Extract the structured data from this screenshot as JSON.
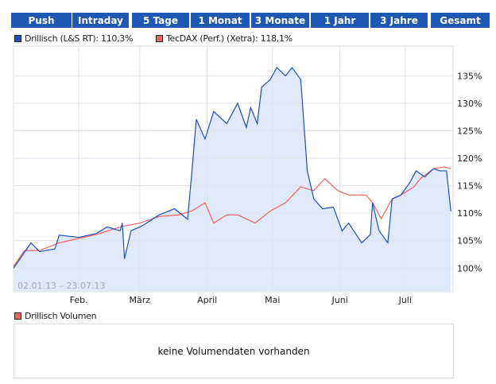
{
  "tabs": [
    "Push",
    "Intraday",
    "5 Tage",
    "1 Monat",
    "3 Monate",
    "1 Jahr",
    "3 Jahre",
    "Gesamt"
  ],
  "chart_data": {
    "type": "line",
    "date_range": "02.01.13 – 23.07.13",
    "x_unit": "days since 02.01.13",
    "xlim": [
      0,
      202
    ],
    "ylim": [
      95.7,
      140.4
    ],
    "yticks": [
      100,
      105,
      110,
      115,
      120,
      125,
      130,
      135
    ],
    "ytick_labels": [
      "100%",
      "105%",
      "110%",
      "115%",
      "120%",
      "125%",
      "130%",
      "135%"
    ],
    "xticks": [
      {
        "day": 30,
        "label": "Feb."
      },
      {
        "day": 58,
        "label": "März"
      },
      {
        "day": 89,
        "label": "April"
      },
      {
        "day": 119,
        "label": "Mai"
      },
      {
        "day": 150,
        "label": "Juni"
      },
      {
        "day": 180,
        "label": "Juli"
      }
    ],
    "series": [
      {
        "name": "Drillisch (L&S RT): 110,3%",
        "color": "#1e4fbf",
        "fill": "#dfe9f9",
        "points": [
          [
            0,
            100
          ],
          [
            3,
            101.7
          ],
          [
            8,
            104.6
          ],
          [
            12,
            103
          ],
          [
            19,
            103.5
          ],
          [
            21,
            106
          ],
          [
            30,
            105.6
          ],
          [
            38,
            106.3
          ],
          [
            43,
            107.5
          ],
          [
            49,
            106.8
          ],
          [
            50,
            108.2
          ],
          [
            51,
            101.7
          ],
          [
            54,
            106.8
          ],
          [
            58,
            107.5
          ],
          [
            60,
            107.9
          ],
          [
            67,
            109.7
          ],
          [
            74,
            110.8
          ],
          [
            80,
            108.9
          ],
          [
            82,
            117.7
          ],
          [
            84,
            127.1
          ],
          [
            88,
            123.5
          ],
          [
            92,
            128.5
          ],
          [
            98,
            126.3
          ],
          [
            103,
            130
          ],
          [
            107,
            125.6
          ],
          [
            109,
            129.2
          ],
          [
            112,
            126.3
          ],
          [
            114,
            132.9
          ],
          [
            118,
            134.3
          ],
          [
            121,
            136.5
          ],
          [
            125,
            135
          ],
          [
            128,
            136.5
          ],
          [
            132,
            134.3
          ],
          [
            135,
            117.7
          ],
          [
            138,
            112.6
          ],
          [
            142,
            110.8
          ],
          [
            147,
            111.1
          ],
          [
            151,
            106.8
          ],
          [
            154,
            108.2
          ],
          [
            160,
            104.6
          ],
          [
            164,
            106.1
          ],
          [
            165,
            111.9
          ],
          [
            168,
            106.8
          ],
          [
            172,
            104.6
          ],
          [
            174,
            112.6
          ],
          [
            178,
            113.3
          ],
          [
            182,
            115.5
          ],
          [
            185,
            117.7
          ],
          [
            189,
            116.6
          ],
          [
            193,
            118.1
          ],
          [
            196,
            117.7
          ],
          [
            199,
            117.7
          ],
          [
            201,
            110.3
          ]
        ]
      },
      {
        "name": "TecDAX (Perf.) (Xetra): 118,1%",
        "color": "#f0625a",
        "points": [
          [
            0,
            100.3
          ],
          [
            5,
            103.2
          ],
          [
            12,
            103.2
          ],
          [
            21,
            104.6
          ],
          [
            30,
            105.4
          ],
          [
            38,
            106.1
          ],
          [
            49,
            107.5
          ],
          [
            58,
            108.2
          ],
          [
            67,
            109.4
          ],
          [
            76,
            109.7
          ],
          [
            82,
            110.4
          ],
          [
            88,
            111.9
          ],
          [
            92,
            108.2
          ],
          [
            98,
            109.7
          ],
          [
            103,
            109.7
          ],
          [
            111,
            108.2
          ],
          [
            118,
            110.4
          ],
          [
            125,
            111.9
          ],
          [
            132,
            114.8
          ],
          [
            138,
            114.1
          ],
          [
            143,
            116.3
          ],
          [
            149,
            114.1
          ],
          [
            154,
            113.3
          ],
          [
            162,
            113.3
          ],
          [
            165,
            111.9
          ],
          [
            169,
            109
          ],
          [
            174,
            112.6
          ],
          [
            178,
            113.3
          ],
          [
            184,
            114.8
          ],
          [
            187,
            116.3
          ],
          [
            193,
            118.1
          ],
          [
            198,
            118.4
          ],
          [
            201,
            118.1
          ]
        ]
      }
    ]
  },
  "volume": {
    "legend": "Drillisch Volumen",
    "message": "keine Volumendaten vorhanden"
  }
}
